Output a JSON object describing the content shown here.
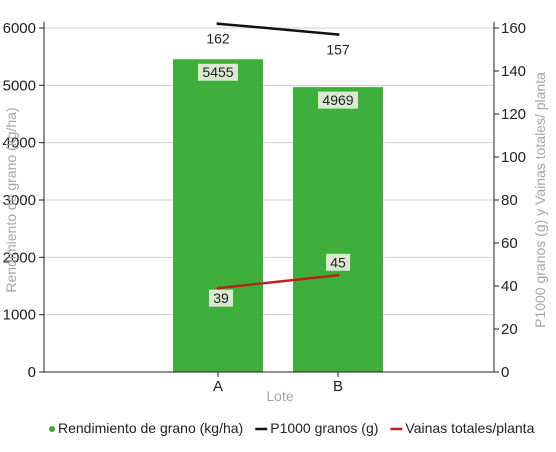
{
  "chart_data": {
    "type": "bar",
    "categories": [
      "A",
      "B"
    ],
    "xlabel": "Lote",
    "ylabel": "Rendimiento de grano (kg/ha)",
    "y2label": "P1000 granos (g) y Vainas totales/ planta",
    "ylim": [
      0,
      6000
    ],
    "y2lim": [
      0,
      160
    ],
    "yticks": [
      0,
      1000,
      2000,
      3000,
      4000,
      5000,
      6000
    ],
    "y2ticks": [
      0,
      20,
      40,
      60,
      80,
      100,
      120,
      140,
      160
    ],
    "grid": "horizontal",
    "legend_position": "bottom",
    "series": [
      {
        "name": "Rendimiento de grano (kg/ha)",
        "type": "bar",
        "axis": "left",
        "values": [
          5455,
          4969
        ],
        "labels": [
          "5455",
          "4969"
        ],
        "color": "#3fae3a",
        "label_bg": "#d9ead0"
      },
      {
        "name": "P1000 granos (g)",
        "type": "line",
        "axis": "right",
        "values": [
          162,
          157
        ],
        "labels": [
          "162",
          "157"
        ],
        "color": "#111111"
      },
      {
        "name": "Vainas totales/planta",
        "type": "line",
        "axis": "right",
        "values": [
          39,
          45
        ],
        "labels": [
          "39",
          "45"
        ],
        "color": "#b3261e",
        "label_bg": "#d9ead0"
      }
    ],
    "legend": [
      {
        "label": "Rendimiento de grano (kg/ha)",
        "marker": "dot",
        "color": "#3fae3a"
      },
      {
        "label": "P1000 granos (g)",
        "marker": "line",
        "color": "#111111"
      },
      {
        "label": "Vainas totales/planta",
        "marker": "line",
        "color": "#b3261e"
      }
    ]
  }
}
